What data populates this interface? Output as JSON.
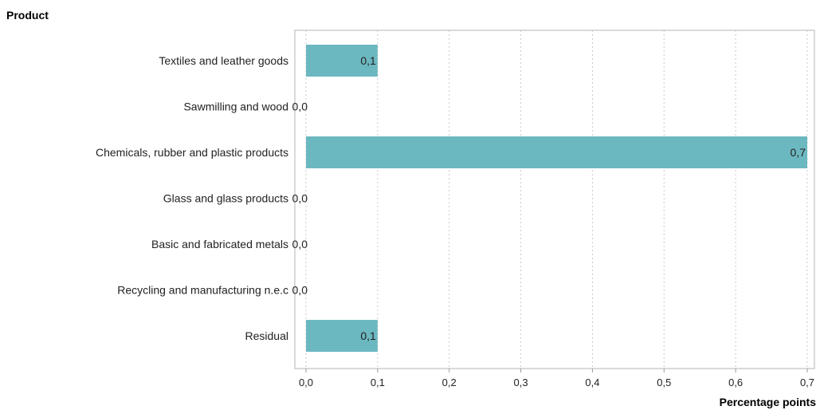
{
  "chart_data": {
    "type": "bar",
    "orientation": "horizontal",
    "ylabel": "Product",
    "xlabel": "Percentage points",
    "categories": [
      "Textiles and leather goods",
      "Sawmilling and wood",
      "Chemicals, rubber and plastic products",
      "Glass and glass products",
      "Basic and fabricated metals",
      "Recycling and manufacturing n.e.c",
      "Residual"
    ],
    "values": [
      0.1,
      0.0,
      0.7,
      0.0,
      0.0,
      0.0,
      0.1
    ],
    "value_labels": [
      "0,1",
      "0,0",
      "0,7",
      "0,0",
      "0,0",
      "0,0",
      "0,1"
    ],
    "xlim": [
      0,
      0.7
    ],
    "xticks": [
      0,
      0.1,
      0.2,
      0.3,
      0.4,
      0.5,
      0.6,
      0.7
    ],
    "xtick_labels": [
      "0,0",
      "0,1",
      "0,2",
      "0,3",
      "0,4",
      "0,5",
      "0,6",
      "0,7"
    ],
    "grid": "vertical dotted",
    "bar_color": "#6cb8c0"
  }
}
